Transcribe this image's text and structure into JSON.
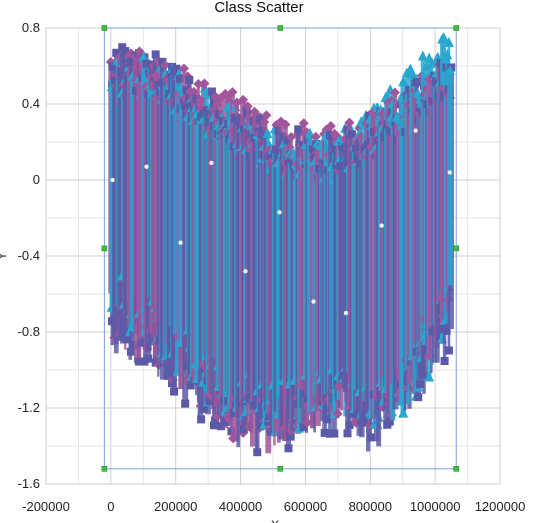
{
  "chart_data": {
    "type": "scatter",
    "title": "Class Scatter",
    "xlabel": "X",
    "ylabel": "Y",
    "xlim": [
      -200000,
      1200000
    ],
    "ylim": [
      -1.6,
      0.8
    ],
    "x_ticks": [
      -200000,
      0,
      200000,
      400000,
      600000,
      800000,
      1000000,
      1200000
    ],
    "y_ticks": [
      0.8,
      0.4,
      0,
      -0.4,
      -0.8,
      -1.2,
      -1.6
    ],
    "x_tick_labels": [
      "-200000",
      "0",
      "200000",
      "400000",
      "600000",
      "800000",
      "1000000",
      "1200000"
    ],
    "y_tick_labels": [
      "0.8",
      "0.4",
      "0",
      "-0.4",
      "-0.8",
      "-1.2",
      "-1.6"
    ],
    "grid": true,
    "series": [
      {
        "color": "#a0569a",
        "marker": "diamond",
        "x_range": [
          0,
          1050000
        ],
        "envelope_top": [
          [
            0,
            0.68
          ],
          [
            100000,
            0.68
          ],
          [
            200000,
            0.62
          ],
          [
            300000,
            0.5
          ],
          [
            400000,
            0.45
          ],
          [
            500000,
            0.32
          ],
          [
            600000,
            0.3
          ],
          [
            700000,
            0.28
          ],
          [
            800000,
            0.36
          ],
          [
            900000,
            0.5
          ],
          [
            1000000,
            0.6
          ],
          [
            1050000,
            0.64
          ]
        ],
        "envelope_bottom": [
          [
            0,
            -0.85
          ],
          [
            100000,
            -1.0
          ],
          [
            200000,
            -1.1
          ],
          [
            300000,
            -1.25
          ],
          [
            400000,
            -1.4
          ],
          [
            500000,
            -1.45
          ],
          [
            600000,
            -1.35
          ],
          [
            700000,
            -1.3
          ],
          [
            800000,
            -1.4
          ],
          [
            900000,
            -1.2
          ],
          [
            1000000,
            -0.95
          ],
          [
            1050000,
            -0.8
          ]
        ]
      },
      {
        "color": "#5a5aa8",
        "marker": "square",
        "x_range": [
          0,
          1050000
        ],
        "envelope_top": [
          [
            0,
            0.7
          ],
          [
            100000,
            0.7
          ],
          [
            200000,
            0.62
          ],
          [
            300000,
            0.52
          ],
          [
            400000,
            0.4
          ],
          [
            500000,
            0.3
          ],
          [
            600000,
            0.26
          ],
          [
            700000,
            0.25
          ],
          [
            800000,
            0.35
          ],
          [
            900000,
            0.48
          ],
          [
            1000000,
            0.62
          ],
          [
            1050000,
            0.7
          ]
        ],
        "envelope_bottom": [
          [
            0,
            -0.9
          ],
          [
            100000,
            -1.05
          ],
          [
            200000,
            -1.15
          ],
          [
            300000,
            -1.3
          ],
          [
            400000,
            -1.42
          ],
          [
            500000,
            -1.46
          ],
          [
            600000,
            -1.4
          ],
          [
            700000,
            -1.33
          ],
          [
            800000,
            -1.44
          ],
          [
            900000,
            -1.3
          ],
          [
            1000000,
            -1.05
          ],
          [
            1050000,
            -0.9
          ]
        ]
      },
      {
        "color": "#2aa6cf",
        "marker": "triangle",
        "x_range": [
          0,
          1050000
        ],
        "envelope_top": [
          [
            0,
            0.7
          ],
          [
            100000,
            0.7
          ],
          [
            200000,
            0.6
          ],
          [
            300000,
            0.48
          ],
          [
            400000,
            0.4
          ],
          [
            500000,
            0.28
          ],
          [
            600000,
            0.25
          ],
          [
            700000,
            0.25
          ],
          [
            800000,
            0.38
          ],
          [
            900000,
            0.55
          ],
          [
            1000000,
            0.72
          ],
          [
            1050000,
            0.78
          ]
        ],
        "envelope_bottom": [
          [
            0,
            -0.7
          ],
          [
            100000,
            -0.9
          ],
          [
            200000,
            -1.0
          ],
          [
            300000,
            -1.2
          ],
          [
            400000,
            -1.3
          ],
          [
            500000,
            -1.35
          ],
          [
            600000,
            -1.3
          ],
          [
            700000,
            -1.25
          ],
          [
            800000,
            -1.35
          ],
          [
            900000,
            -1.25
          ],
          [
            1000000,
            -1.0
          ],
          [
            1050000,
            -0.75
          ]
        ]
      }
    ],
    "highlight_points": [
      {
        "x": 5000,
        "y": 0.0
      },
      {
        "x": 110000,
        "y": 0.07
      },
      {
        "x": 215000,
        "y": -0.33
      },
      {
        "x": 310000,
        "y": 0.09
      },
      {
        "x": 415000,
        "y": -0.48
      },
      {
        "x": 520000,
        "y": -0.17
      },
      {
        "x": 625000,
        "y": -0.64
      },
      {
        "x": 725000,
        "y": -0.7
      },
      {
        "x": 835000,
        "y": -0.24
      },
      {
        "x": 940000,
        "y": 0.26
      },
      {
        "x": 1045000,
        "y": 0.04
      }
    ],
    "selection_box": {
      "x": [
        -20000,
        1065000
      ],
      "y": [
        -1.52,
        0.8
      ]
    }
  }
}
